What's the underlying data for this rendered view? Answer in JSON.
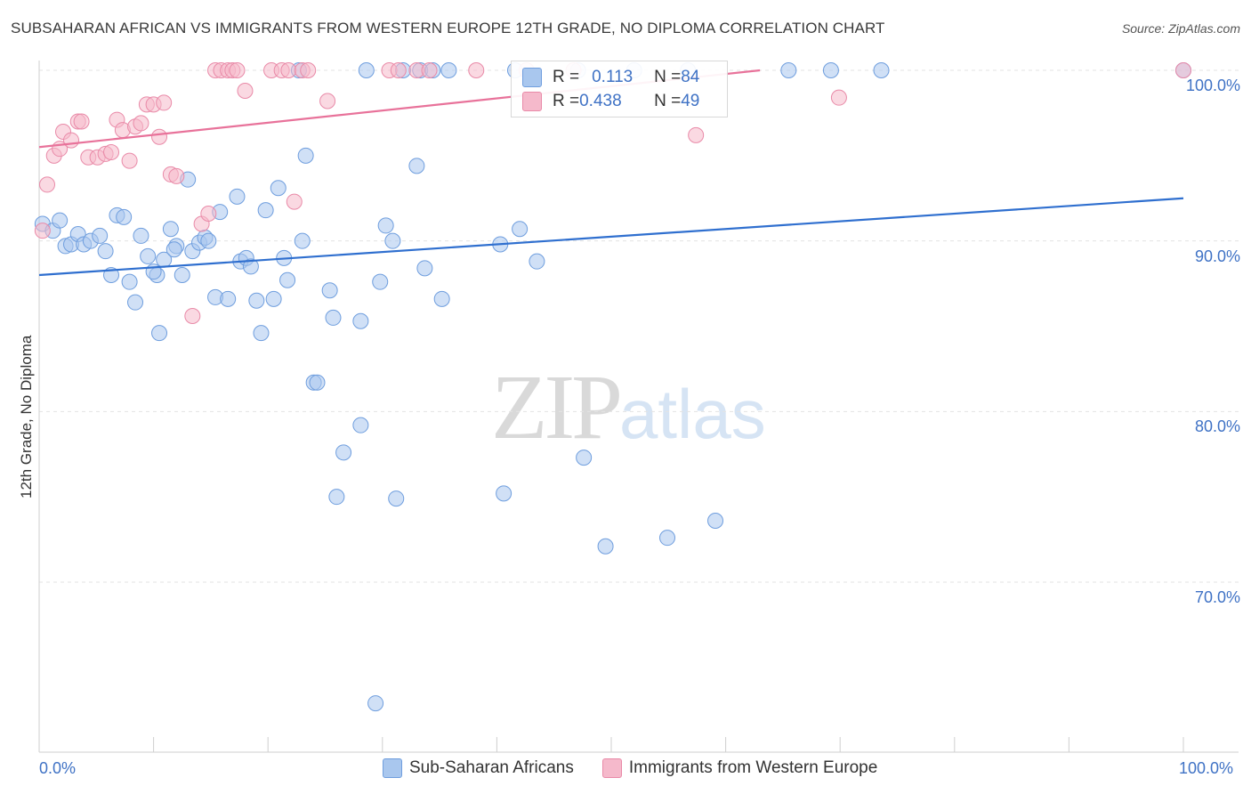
{
  "title": "SUBSAHARAN AFRICAN VS IMMIGRANTS FROM WESTERN EUROPE 12TH GRADE, NO DIPLOMA CORRELATION CHART",
  "source": "Source: ZipAtlas.com",
  "watermark": {
    "zip": "ZIP",
    "atlas": "atlas"
  },
  "legend_box": {
    "row1": {
      "r_label": "R = ",
      "r_value": "0.113",
      "n_label": "N = ",
      "n_value": "84"
    },
    "row2": {
      "r_label": "R = ",
      "r_value": "0.438",
      "n_label": "N = ",
      "n_value": "49"
    }
  },
  "legend_bottom": {
    "s1": "Sub-Saharan Africans",
    "s2": "Immigrants from Western Europe"
  },
  "colors": {
    "blue_fill": "#a9c7ee",
    "blue_stroke": "#6f9ede",
    "blue_line": "#2f6fcf",
    "pink_fill": "#f5b9cb",
    "pink_stroke": "#e98aa8",
    "pink_line": "#e8729a",
    "tick_text": "#3f72c5"
  },
  "chart_data": {
    "type": "scatter",
    "title": "SUBSAHARAN AFRICAN VS IMMIGRANTS FROM WESTERN EUROPE 12TH GRADE, NO DIPLOMA CORRELATION CHART",
    "xlabel": "",
    "ylabel": "12th Grade, No Diploma",
    "xlim": [
      0,
      100
    ],
    "ylim": [
      60.5,
      101.5
    ],
    "x_ticks": [
      "0.0%",
      "100.0%"
    ],
    "y_ticks": [
      {
        "value": 100,
        "label": "100.0%"
      },
      {
        "value": 90,
        "label": "90.0%"
      },
      {
        "value": 80,
        "label": "80.0%"
      },
      {
        "value": 70,
        "label": "70.0%"
      }
    ],
    "grid": true,
    "legend_position": "top-center",
    "series": [
      {
        "name": "Sub-Saharan Africans",
        "R": 0.113,
        "N": 84,
        "trend": [
          [
            0,
            88.0
          ],
          [
            100,
            92.5
          ]
        ],
        "points": [
          [
            0.3,
            91.0
          ],
          [
            1.2,
            90.6
          ],
          [
            1.8,
            91.2
          ],
          [
            2.3,
            89.7
          ],
          [
            2.8,
            89.8
          ],
          [
            3.4,
            90.4
          ],
          [
            3.9,
            89.8
          ],
          [
            4.5,
            90.0
          ],
          [
            5.3,
            90.3
          ],
          [
            5.8,
            89.4
          ],
          [
            6.3,
            88.0
          ],
          [
            6.8,
            91.5
          ],
          [
            7.4,
            91.4
          ],
          [
            7.9,
            87.6
          ],
          [
            8.4,
            86.4
          ],
          [
            8.9,
            90.3
          ],
          [
            9.5,
            89.1
          ],
          [
            10.3,
            88.0
          ],
          [
            10.5,
            84.6
          ],
          [
            10.9,
            88.9
          ],
          [
            11.5,
            90.7
          ],
          [
            12.0,
            89.7
          ],
          [
            12.5,
            88.0
          ],
          [
            13.0,
            93.6
          ],
          [
            13.4,
            89.4
          ],
          [
            14.0,
            89.9
          ],
          [
            14.5,
            90.2
          ],
          [
            14.8,
            90.0
          ],
          [
            15.4,
            86.7
          ],
          [
            15.8,
            91.7
          ],
          [
            16.5,
            86.6
          ],
          [
            17.3,
            92.6
          ],
          [
            17.6,
            88.8
          ],
          [
            18.1,
            89.0
          ],
          [
            18.5,
            88.5
          ],
          [
            19.0,
            86.5
          ],
          [
            19.4,
            84.6
          ],
          [
            19.8,
            91.8
          ],
          [
            20.5,
            86.6
          ],
          [
            20.9,
            93.1
          ],
          [
            21.4,
            89.0
          ],
          [
            21.7,
            87.7
          ],
          [
            22.7,
            100.0
          ],
          [
            23.0,
            90.0
          ],
          [
            23.3,
            95.0
          ],
          [
            24.0,
            81.7
          ],
          [
            24.3,
            81.7
          ],
          [
            25.4,
            87.1
          ],
          [
            25.7,
            85.5
          ],
          [
            26.0,
            75.0
          ],
          [
            26.6,
            77.6
          ],
          [
            28.1,
            79.2
          ],
          [
            28.1,
            85.3
          ],
          [
            28.6,
            100.0
          ],
          [
            29.4,
            62.9
          ],
          [
            29.8,
            87.6
          ],
          [
            30.3,
            90.9
          ],
          [
            30.9,
            90.0
          ],
          [
            31.2,
            74.9
          ],
          [
            31.8,
            100.0
          ],
          [
            33.0,
            94.4
          ],
          [
            33.3,
            100.0
          ],
          [
            33.7,
            88.4
          ],
          [
            34.4,
            100.0
          ],
          [
            35.2,
            86.6
          ],
          [
            35.8,
            100.0
          ],
          [
            40.3,
            89.8
          ],
          [
            40.6,
            75.2
          ],
          [
            41.6,
            100.0
          ],
          [
            42.0,
            90.7
          ],
          [
            43.5,
            88.8
          ],
          [
            47.1,
            100.0
          ],
          [
            47.6,
            77.3
          ],
          [
            49.5,
            72.1
          ],
          [
            52.0,
            100.0
          ],
          [
            54.9,
            72.6
          ],
          [
            56.7,
            100.0
          ],
          [
            59.1,
            73.6
          ],
          [
            65.5,
            100.0
          ],
          [
            69.2,
            100.0
          ],
          [
            73.6,
            100.0
          ],
          [
            100.0,
            100.0
          ],
          [
            10.0,
            88.2
          ],
          [
            11.8,
            89.5
          ]
        ]
      },
      {
        "name": "Immigrants from Western Europe",
        "R": 0.438,
        "N": 49,
        "trend": [
          [
            0,
            95.5
          ],
          [
            63,
            100.0
          ]
        ],
        "points": [
          [
            0.3,
            90.6
          ],
          [
            0.7,
            93.3
          ],
          [
            1.3,
            95.0
          ],
          [
            1.8,
            95.4
          ],
          [
            2.1,
            96.4
          ],
          [
            2.8,
            95.9
          ],
          [
            3.4,
            97.0
          ],
          [
            3.7,
            97.0
          ],
          [
            4.3,
            94.9
          ],
          [
            5.1,
            94.9
          ],
          [
            5.8,
            95.1
          ],
          [
            6.3,
            95.2
          ],
          [
            6.8,
            97.1
          ],
          [
            7.3,
            96.5
          ],
          [
            7.9,
            94.7
          ],
          [
            8.4,
            96.7
          ],
          [
            8.9,
            96.9
          ],
          [
            9.4,
            98.0
          ],
          [
            10.0,
            98.0
          ],
          [
            10.5,
            96.1
          ],
          [
            10.9,
            98.1
          ],
          [
            11.5,
            93.9
          ],
          [
            12.0,
            93.8
          ],
          [
            13.4,
            85.6
          ],
          [
            14.2,
            91.0
          ],
          [
            14.8,
            91.6
          ],
          [
            15.4,
            100.0
          ],
          [
            15.9,
            100.0
          ],
          [
            16.5,
            100.0
          ],
          [
            16.9,
            100.0
          ],
          [
            17.3,
            100.0
          ],
          [
            18.0,
            98.8
          ],
          [
            20.3,
            100.0
          ],
          [
            21.2,
            100.0
          ],
          [
            21.8,
            100.0
          ],
          [
            22.3,
            92.3
          ],
          [
            23.0,
            100.0
          ],
          [
            23.5,
            100.0
          ],
          [
            25.2,
            98.2
          ],
          [
            30.6,
            100.0
          ],
          [
            31.4,
            100.0
          ],
          [
            33.0,
            100.0
          ],
          [
            34.1,
            100.0
          ],
          [
            38.2,
            100.0
          ],
          [
            42.6,
            100.0
          ],
          [
            46.7,
            100.0
          ],
          [
            57.4,
            96.2
          ],
          [
            69.9,
            98.4
          ],
          [
            100.0,
            100.0
          ]
        ]
      }
    ]
  }
}
